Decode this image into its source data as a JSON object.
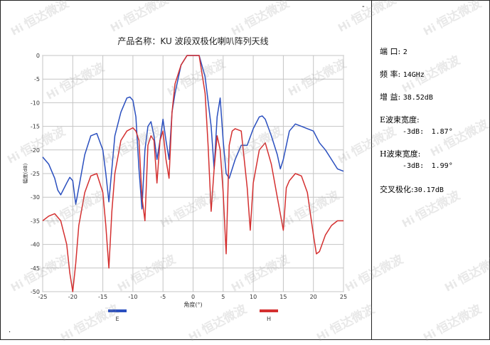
{
  "chart_data": {
    "type": "line",
    "title": "产品名称：KU 波段双极化喇叭阵列天线",
    "xlabel": "角度(°)",
    "ylabel": "幅度(dB)",
    "xlim": [
      -25,
      25
    ],
    "ylim": [
      -50,
      0
    ],
    "xticks": [
      -25,
      -20,
      -15,
      -10,
      -5,
      0,
      5,
      10,
      15,
      20,
      25
    ],
    "yticks": [
      0,
      -5,
      -10,
      -15,
      -20,
      -25,
      -30,
      -35,
      -40,
      -45,
      -50
    ],
    "grid": true,
    "legend": "bottom",
    "series": [
      {
        "name": "E",
        "color": "#2a4fbf",
        "x": [
          -25,
          -24,
          -23,
          -22.5,
          -22,
          -21,
          -20.5,
          -20,
          -19.5,
          -19,
          -18,
          -17,
          -16,
          -15,
          -14.5,
          -14,
          -13.5,
          -13,
          -12,
          -11,
          -10.5,
          -10,
          -9.5,
          -9,
          -8.5,
          -8,
          -7.5,
          -7,
          -6.5,
          -6,
          -5.5,
          -5,
          -4.5,
          -4,
          -3.5,
          -3,
          -2,
          -1,
          0,
          1,
          2,
          3,
          3.5,
          4,
          4.5,
          5,
          5.5,
          6,
          7,
          8,
          9,
          10,
          11,
          11.5,
          12,
          13,
          14,
          14.5,
          15,
          16,
          17,
          18,
          19,
          20,
          21,
          22,
          23,
          24,
          25
        ],
        "y": [
          -21.5,
          -23,
          -26,
          -28.5,
          -29.5,
          -27,
          -25.8,
          -26.5,
          -31.5,
          -28,
          -21,
          -17,
          -16.5,
          -20,
          -25,
          -31,
          -24,
          -17,
          -12,
          -9,
          -8.8,
          -9.5,
          -13,
          -24,
          -32.5,
          -20,
          -15,
          -14,
          -17,
          -22,
          -18,
          -13.5,
          -18,
          -22,
          -12,
          -8,
          -2,
          0,
          0,
          0,
          -4.5,
          -15,
          -24,
          -13,
          -9,
          -18,
          -25,
          -26,
          -22,
          -19,
          -19,
          -15.5,
          -13,
          -12.8,
          -13.5,
          -17,
          -21,
          -24,
          -22,
          -16,
          -14.5,
          -15,
          -15.5,
          -16,
          -18.5,
          -20,
          -22,
          -24,
          -24.5
        ]
      },
      {
        "name": "H",
        "color": "#d43030",
        "x": [
          -25,
          -24,
          -23,
          -22,
          -21,
          -20.5,
          -20,
          -19.5,
          -19,
          -18,
          -17,
          -16,
          -15,
          -14.5,
          -14,
          -13.5,
          -13,
          -12,
          -11,
          -10,
          -9.5,
          -9,
          -8.5,
          -8,
          -7.5,
          -7,
          -6.5,
          -6,
          -5.5,
          -5,
          -4.5,
          -4,
          -3.5,
          -3,
          -2,
          -1,
          0,
          1,
          2,
          2.5,
          3,
          3.5,
          4,
          4.5,
          5,
          5.5,
          6,
          6.5,
          7,
          8,
          9,
          9.5,
          10,
          11,
          12,
          13,
          14,
          15,
          15.5,
          16,
          17,
          18,
          19,
          20,
          20.5,
          21,
          22,
          23,
          24,
          25
        ],
        "y": [
          -35,
          -34,
          -33.5,
          -35,
          -40,
          -46,
          -50,
          -44,
          -36,
          -29,
          -25.5,
          -25,
          -29,
          -36,
          -45,
          -33,
          -25,
          -18,
          -16,
          -15.3,
          -16,
          -18,
          -30,
          -35,
          -19,
          -17,
          -18,
          -27,
          -18,
          -16,
          -22,
          -26,
          -12,
          -6,
          -2,
          0,
          0,
          0,
          -8,
          -19,
          -33,
          -24,
          -17,
          -20,
          -29,
          -42,
          -19,
          -16,
          -15.5,
          -16,
          -28,
          -37,
          -27,
          -20,
          -18.5,
          -23,
          -30,
          -37,
          -28,
          -26.5,
          -25,
          -25.5,
          -29,
          -38,
          -42,
          -41.5,
          -38,
          -36,
          -35,
          -35
        ]
      }
    ]
  },
  "info": {
    "port_label": "端 口:",
    "port_value": "2",
    "freq_label": "频 率:",
    "freq_value": "14GHz",
    "gain_label": "增 益:",
    "gain_value": "38.52dB",
    "e_bw_label": "E波束宽度:",
    "e_bw_sub": "-3dB:",
    "e_bw_value": "1.87°",
    "h_bw_label": "H波束宽度:",
    "h_bw_sub": "-3dB:",
    "h_bw_value": "1.99°",
    "xpol_label": "交叉极化:",
    "xpol_value": "30.17dB"
  },
  "watermark": {
    "text": "恒达微波",
    "logo": "Hi"
  },
  "marks": {
    "minus": "-",
    "dot": "."
  }
}
